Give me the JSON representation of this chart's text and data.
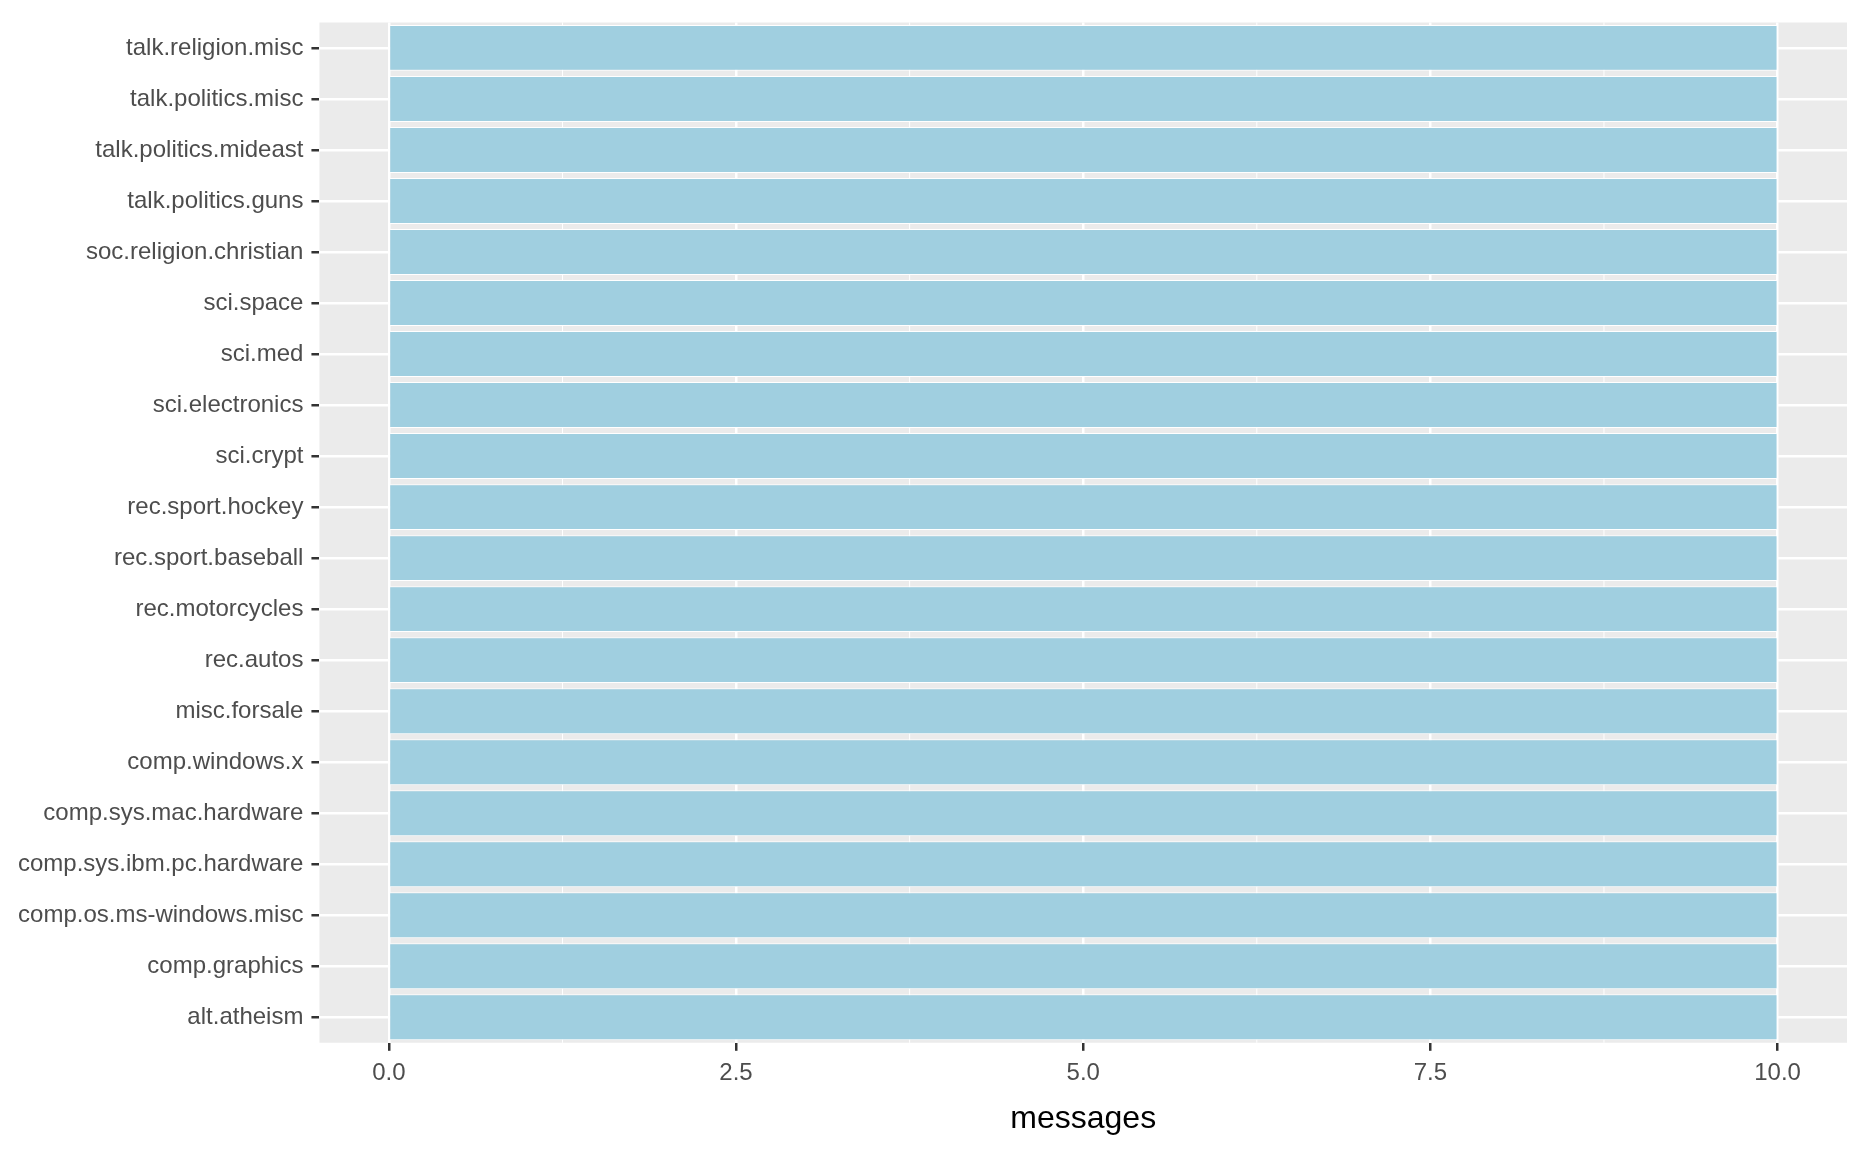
{
  "chart_data": {
    "type": "bar",
    "orientation": "horizontal",
    "xlabel": "messages",
    "categories": [
      "talk.religion.misc",
      "talk.politics.misc",
      "talk.politics.mideast",
      "talk.politics.guns",
      "soc.religion.christian",
      "sci.space",
      "sci.med",
      "sci.electronics",
      "sci.crypt",
      "rec.sport.hockey",
      "rec.sport.baseball",
      "rec.motorcycles",
      "rec.autos",
      "misc.forsale",
      "comp.windows.x",
      "comp.sys.mac.hardware",
      "comp.sys.ibm.pc.hardware",
      "comp.os.ms-windows.misc",
      "comp.graphics",
      "alt.atheism"
    ],
    "values": [
      10,
      10,
      10,
      10,
      10,
      10,
      10,
      10,
      10,
      10,
      10,
      10,
      10,
      10,
      10,
      10,
      10,
      10,
      10,
      10
    ],
    "color": "#a0cfe0",
    "xlim": [
      -0.5,
      10.5
    ],
    "xticks": [
      {
        "value": 0,
        "label": "0.0"
      },
      {
        "value": 2.5,
        "label": "2.5"
      },
      {
        "value": 5,
        "label": "5.0"
      },
      {
        "value": 7.5,
        "label": "7.5"
      },
      {
        "value": 10,
        "label": "10.0"
      }
    ],
    "grid": true,
    "legend": false
  }
}
